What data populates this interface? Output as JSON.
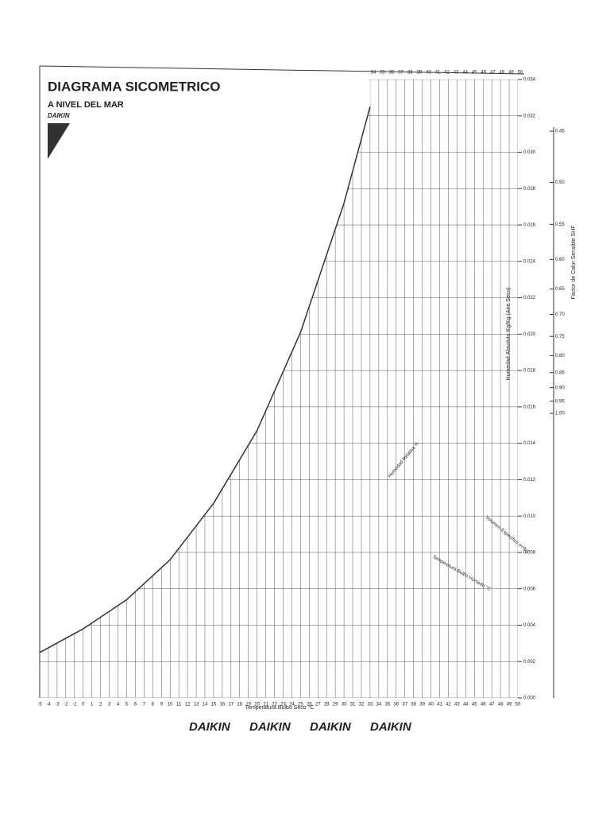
{
  "chart_data": {
    "type": "psychrometric",
    "title": "DIAGRAMA SICOMETRICO",
    "subtitle": "A NIVEL DEL MAR",
    "brand": "DAIKIN",
    "xlabel": "Temperatura Bulbo Seco °C",
    "ylabel": "Humedad Absoluta Kg/Kg (Aire Seco)",
    "y2label": "Factor de Calor Sensible SHF",
    "annotations": [
      "Humedad Relativa %",
      "Volumen Especifico m³/kg",
      "Temperatura Bulbo Humedo °C"
    ],
    "xlim": [
      -5,
      50
    ],
    "xticks": [
      -5,
      -4,
      -3,
      -2,
      -1,
      0,
      1,
      2,
      3,
      4,
      5,
      6,
      7,
      8,
      9,
      10,
      11,
      12,
      13,
      14,
      15,
      16,
      17,
      18,
      19,
      20,
      21,
      22,
      23,
      24,
      25,
      26,
      27,
      28,
      29,
      30,
      31,
      32,
      33,
      34,
      35,
      36,
      37,
      38,
      39,
      40,
      41,
      42,
      43,
      44,
      45,
      46,
      47,
      48,
      49,
      50
    ],
    "ylim": [
      0,
      0.034
    ],
    "yticks": [
      {
        "value": 0,
        "label": "0.000"
      },
      0.002,
      0.004,
      0.006,
      0.008,
      {
        "value": 0.01,
        "label": "0.010"
      },
      0.012,
      0.014,
      0.016,
      0.018,
      {
        "value": 0.02,
        "label": "0.020"
      },
      0.022,
      0.024,
      0.026,
      0.028,
      {
        "value": 0.03,
        "label": "0.030"
      },
      0.032,
      0.034
    ],
    "y2lim": [
      0.45,
      1.0
    ],
    "y2ticks": [
      0.45,
      {
        "value": 0.5,
        "label": "0.50"
      },
      0.55,
      {
        "value": 0.6,
        "label": "0.60"
      },
      0.65,
      {
        "value": 0.7,
        "label": "0.70"
      },
      0.75,
      {
        "value": 0.8,
        "label": "0.80"
      },
      0.85,
      {
        "value": 0.9,
        "label": "0.90"
      },
      0.95,
      {
        "value": 1,
        "label": "1.00"
      }
    ],
    "top_ticks": [
      34,
      35,
      36,
      37,
      38,
      39,
      40,
      41,
      42,
      43,
      44,
      45,
      46,
      47,
      48,
      49,
      50
    ],
    "saturation": {
      "x": [
        -5,
        0,
        5,
        10,
        15,
        20,
        25,
        30,
        33
      ],
      "values": [
        0.0025,
        0.0038,
        0.0054,
        0.0076,
        0.0107,
        0.0147,
        0.0201,
        0.0272,
        0.0325
      ]
    },
    "color": "#333",
    "footer_brands": [
      "DAIKIN",
      "DAIKIN",
      "DAIKIN",
      "DAIKIN"
    ]
  }
}
